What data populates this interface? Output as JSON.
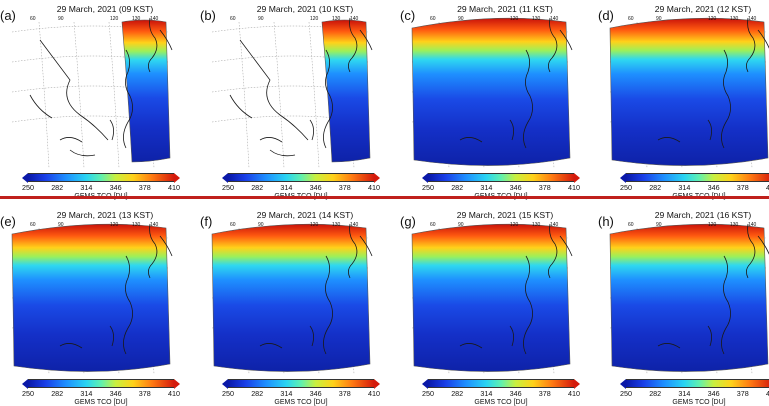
{
  "panels": [
    {
      "letter": "(a)",
      "title": "29 March, 2021 (09 KST)",
      "coverage": "partial-east"
    },
    {
      "letter": "(b)",
      "title": "29 March, 2021 (10 KST)",
      "coverage": "partial-east"
    },
    {
      "letter": "(c)",
      "title": "29 March, 2021 (11 KST)",
      "coverage": "full"
    },
    {
      "letter": "(d)",
      "title": "29 March, 2021 (12 KST)",
      "coverage": "full"
    },
    {
      "letter": "(e)",
      "title": "29 March, 2021 (13 KST)",
      "coverage": "full"
    },
    {
      "letter": "(f)",
      "title": "29 March, 2021 (14 KST)",
      "coverage": "full"
    },
    {
      "letter": "(g)",
      "title": "29 March, 2021 (15 KST)",
      "coverage": "full"
    },
    {
      "letter": "(h)",
      "title": "29 March, 2021 (16 KST)",
      "coverage": "full"
    }
  ],
  "colorbar": {
    "ticks": [
      "250",
      "282",
      "314",
      "346",
      "378",
      "410"
    ],
    "label": "GEMS TCO [DU]",
    "range": [
      250,
      410
    ]
  },
  "lon_labels": [
    "60",
    "90",
    "120",
    "130",
    "140"
  ],
  "colors": {
    "low": "#0a18a8",
    "mid": "#29d4f2",
    "high": "#d41a0c",
    "divider": "#c0201c"
  }
}
